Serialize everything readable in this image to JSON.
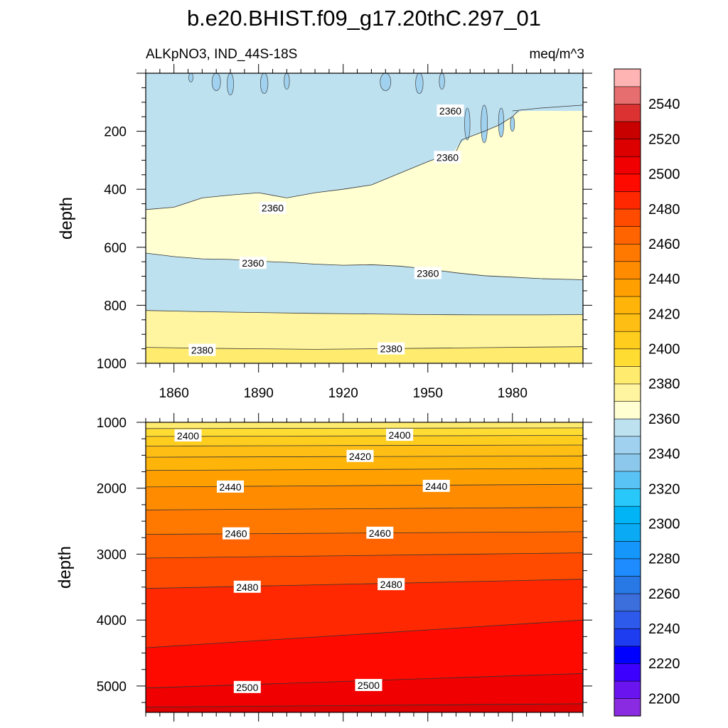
{
  "chart_data": {
    "type": "contour",
    "title": "b.e20.BHIST.f09_g17.20thC.297_01",
    "left_label": "ALKpNO3, IND_44S-18S",
    "right_label": "meq/m^3",
    "colorbar": {
      "levels": [
        2200,
        2210,
        2220,
        2230,
        2240,
        2250,
        2260,
        2270,
        2280,
        2290,
        2300,
        2310,
        2320,
        2330,
        2340,
        2350,
        2360,
        2370,
        2380,
        2390,
        2400,
        2410,
        2420,
        2430,
        2440,
        2450,
        2460,
        2470,
        2480,
        2490,
        2500,
        2510,
        2520,
        2530,
        2540,
        2550
      ],
      "labels": [
        "2200",
        "2220",
        "2240",
        "2260",
        "2280",
        "2300",
        "2320",
        "2340",
        "2360",
        "2380",
        "2400",
        "2420",
        "2440",
        "2460",
        "2480",
        "2500",
        "2520",
        "2540"
      ],
      "colors": [
        "#8a2be2",
        "#6a14f0",
        "#3c00ff",
        "#0000ff",
        "#1e3cf0",
        "#2d5aeb",
        "#3c6edc",
        "#2878e6",
        "#1e8cff",
        "#1496fa",
        "#0aaaf5",
        "#00b4f5",
        "#28c8fa",
        "#5ac3f5",
        "#8cc8eb",
        "#a0d2f0",
        "#bee1f0",
        "#ffffd2",
        "#fff5a0",
        "#ffeb6e",
        "#ffdc32",
        "#ffcd1e",
        "#ffbe14",
        "#ffb40a",
        "#ffa000",
        "#ff8c00",
        "#ff7800",
        "#ff6400",
        "#ff4b00",
        "#ff2800",
        "#ff0a00",
        "#f00000",
        "#dc0000",
        "#c80000",
        "#dc3232",
        "#e66e6e",
        "#ffb4b4"
      ]
    },
    "top_panel": {
      "ylabel": "depth",
      "ylim": [
        0,
        1000
      ],
      "yticks": [
        "200",
        "400",
        "600",
        "800",
        "1000"
      ],
      "xlim": [
        1850,
        2005
      ],
      "xticks": [
        "1860",
        "1890",
        "1920",
        "1950",
        "1980"
      ],
      "contour_lines": [
        {
          "level": 2360,
          "x": [
            1850,
            1860,
            1870,
            1880,
            1890,
            1900,
            1910,
            1920,
            1930,
            1940,
            1950,
            1960,
            1970,
            1980,
            1990,
            2005
          ],
          "depth": [
            620,
            632,
            640,
            642,
            648,
            652,
            658,
            662,
            660,
            665,
            675,
            688,
            698,
            703,
            708,
            712
          ]
        },
        {
          "level": 2360,
          "x": [
            1850,
            1860,
            1870,
            1880,
            1890,
            1900,
            1910,
            1920,
            1930,
            1940,
            1950,
            1960,
            1962,
            1970,
            1975,
            1980,
            1982
          ],
          "depth": [
            470,
            462,
            430,
            420,
            412,
            430,
            412,
            400,
            385,
            345,
            305,
            270,
            230,
            200,
            180,
            150,
            130
          ]
        },
        {
          "level": 2360,
          "x": [
            1980,
            1990,
            2005
          ],
          "depth": [
            130,
            120,
            110
          ]
        },
        {
          "level": 2370,
          "x": [
            1850,
            1870,
            1890,
            1910,
            1930,
            1950,
            1970,
            1990,
            2005
          ],
          "depth": [
            818,
            822,
            825,
            828,
            830,
            832,
            833,
            833,
            832
          ]
        },
        {
          "level": 2380,
          "x": [
            1850,
            1870,
            1890,
            1910,
            1930,
            1950,
            1970,
            1990,
            2005
          ],
          "depth": [
            945,
            948,
            950,
            952,
            950,
            948,
            946,
            944,
            943
          ]
        }
      ],
      "contour_labels": [
        {
          "text": "2360",
          "x": 1958,
          "depth": 130
        },
        {
          "text": "2360",
          "x": 1957,
          "depth": 290
        },
        {
          "text": "2360",
          "x": 1895,
          "depth": 465
        },
        {
          "text": "2360",
          "x": 1888,
          "depth": 655
        },
        {
          "text": "2360",
          "x": 1950,
          "depth": 690
        },
        {
          "text": "2380",
          "x": 1870,
          "depth": 955
        },
        {
          "text": "2380",
          "x": 1937,
          "depth": 950
        }
      ]
    },
    "bottom_panel": {
      "ylabel": "depth",
      "ylim": [
        1000,
        5400
      ],
      "yticks": [
        "1000",
        "2000",
        "3000",
        "4000",
        "5000"
      ],
      "xlim": [
        1850,
        2005
      ],
      "contour_lines": [
        {
          "level": 2390,
          "x": [
            1850,
            2005
          ],
          "depth": [
            1095,
            1085
          ]
        },
        {
          "level": 2400,
          "x": [
            1850,
            2005
          ],
          "depth": [
            1215,
            1200
          ]
        },
        {
          "level": 2410,
          "x": [
            1850,
            2005
          ],
          "depth": [
            1360,
            1345
          ]
        },
        {
          "level": 2420,
          "x": [
            1850,
            2005
          ],
          "depth": [
            1530,
            1510
          ]
        },
        {
          "level": 2430,
          "x": [
            1850,
            2005
          ],
          "depth": [
            1730,
            1700
          ]
        },
        {
          "level": 2440,
          "x": [
            1850,
            2005
          ],
          "depth": [
            1980,
            1940
          ]
        },
        {
          "level": 2450,
          "x": [
            1850,
            2005
          ],
          "depth": [
            2330,
            2290
          ]
        },
        {
          "level": 2460,
          "x": [
            1850,
            2005
          ],
          "depth": [
            2700,
            2660
          ]
        },
        {
          "level": 2470,
          "x": [
            1850,
            2005
          ],
          "depth": [
            3060,
            2980
          ]
        },
        {
          "level": 2480,
          "x": [
            1850,
            2005
          ],
          "depth": [
            3520,
            3380
          ]
        },
        {
          "level": 2490,
          "x": [
            1850,
            2005
          ],
          "depth": [
            4420,
            4000
          ]
        },
        {
          "level": 2500,
          "x": [
            1850,
            2005
          ],
          "depth": [
            5030,
            4810
          ]
        },
        {
          "level": 2510,
          "x": [
            1850,
            2005
          ],
          "depth": [
            5320,
            5270
          ]
        }
      ],
      "contour_labels": [
        {
          "text": "2400",
          "x": 1865,
          "depth": 1205
        },
        {
          "text": "2400",
          "x": 1940,
          "depth": 1195
        },
        {
          "text": "2420",
          "x": 1926,
          "depth": 1515
        },
        {
          "text": "2440",
          "x": 1880,
          "depth": 1980
        },
        {
          "text": "2440",
          "x": 1953,
          "depth": 1970
        },
        {
          "text": "2460",
          "x": 1882,
          "depth": 2690
        },
        {
          "text": "2460",
          "x": 1933,
          "depth": 2680
        },
        {
          "text": "2480",
          "x": 1886,
          "depth": 3500
        },
        {
          "text": "2480",
          "x": 1937,
          "depth": 3460
        },
        {
          "text": "2500",
          "x": 1886,
          "depth": 5020
        },
        {
          "text": "2500",
          "x": 1929,
          "depth": 4990
        }
      ]
    }
  }
}
